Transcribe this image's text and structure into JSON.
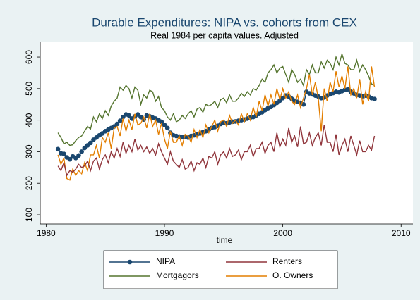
{
  "chart_data": {
    "type": "line",
    "title": "Durable Expenditures: NIPA vs. cohorts from CEX",
    "subtitle": "Real 1984 per capita values. Adjusted",
    "x_label": "time",
    "x": [
      1981,
      1981.25,
      1981.5,
      1981.75,
      1982,
      1982.25,
      1982.5,
      1982.75,
      1983,
      1983.25,
      1983.5,
      1983.75,
      1984,
      1984.25,
      1984.5,
      1984.75,
      1985,
      1985.25,
      1985.5,
      1985.75,
      1986,
      1986.25,
      1986.5,
      1986.75,
      1987,
      1987.25,
      1987.5,
      1987.75,
      1988,
      1988.25,
      1988.5,
      1988.75,
      1989,
      1989.25,
      1989.5,
      1989.75,
      1990,
      1990.25,
      1990.5,
      1990.75,
      1991,
      1991.25,
      1991.5,
      1991.75,
      1992,
      1992.25,
      1992.5,
      1992.75,
      1993,
      1993.25,
      1993.5,
      1993.75,
      1994,
      1994.25,
      1994.5,
      1994.75,
      1995,
      1995.25,
      1995.5,
      1995.75,
      1996,
      1996.25,
      1996.5,
      1996.75,
      1997,
      1997.25,
      1997.5,
      1997.75,
      1998,
      1998.25,
      1998.5,
      1998.75,
      1999,
      1999.25,
      1999.5,
      1999.75,
      2000,
      2000.25,
      2000.5,
      2000.75,
      2001,
      2001.25,
      2001.5,
      2001.75,
      2002,
      2002.25,
      2002.5,
      2002.75,
      2003,
      2003.25,
      2003.5,
      2003.75,
      2004,
      2004.25,
      2004.5,
      2004.75,
      2005,
      2005.25,
      2005.5,
      2005.75,
      2006,
      2006.25,
      2006.5,
      2006.75,
      2007,
      2007.25,
      2007.5,
      2007.75
    ],
    "series": [
      {
        "name": "NIPA",
        "color": "#1a476f",
        "markers": true,
        "values": [
          308,
          295,
          293,
          282,
          276,
          285,
          280,
          288,
          300,
          312,
          320,
          328,
          338,
          345,
          352,
          358,
          365,
          370,
          375,
          380,
          388,
          398,
          410,
          418,
          415,
          405,
          412,
          418,
          410,
          402,
          415,
          412,
          408,
          405,
          400,
          395,
          385,
          375,
          360,
          352,
          350,
          348,
          346,
          347,
          345,
          350,
          352,
          355,
          358,
          362,
          365,
          370,
          375,
          378,
          382,
          388,
          392,
          390,
          393,
          395,
          396,
          398,
          400,
          402,
          405,
          408,
          410,
          415,
          420,
          425,
          432,
          438,
          442,
          448,
          455,
          462,
          470,
          478,
          475,
          468,
          462,
          458,
          455,
          450,
          490,
          485,
          482,
          478,
          475,
          470,
          472,
          478,
          482,
          486,
          490,
          488,
          492,
          496,
          498,
          490,
          485,
          480,
          478,
          476,
          478,
          475,
          470,
          467
        ]
      },
      {
        "name": "Renters",
        "color": "#90353b",
        "markers": false,
        "values": [
          255,
          240,
          265,
          225,
          240,
          235,
          245,
          260,
          250,
          255,
          270,
          240,
          270,
          280,
          245,
          275,
          290,
          265,
          300,
          280,
          310,
          285,
          330,
          295,
          320,
          300,
          340,
          305,
          320,
          300,
          315,
          295,
          310,
          290,
          325,
          300,
          280,
          260,
          300,
          270,
          260,
          250,
          275,
          245,
          250,
          270,
          240,
          265,
          260,
          280,
          250,
          285,
          280,
          300,
          260,
          290,
          300,
          280,
          310,
          285,
          290,
          305,
          275,
          300,
          300,
          320,
          285,
          310,
          310,
          330,
          295,
          320,
          330,
          300,
          360,
          315,
          340,
          320,
          375,
          330,
          350,
          315,
          380,
          325,
          330,
          360,
          320,
          345,
          360,
          320,
          385,
          330,
          330,
          300,
          355,
          290,
          320,
          340,
          300,
          350,
          320,
          290,
          335,
          300,
          300,
          320,
          305,
          350
        ]
      },
      {
        "name": "Mortgagors",
        "color": "#55752f",
        "markers": false,
        "values": [
          360,
          345,
          325,
          330,
          320,
          322,
          335,
          345,
          350,
          365,
          380,
          372,
          410,
          395,
          420,
          405,
          430,
          415,
          445,
          460,
          470,
          505,
          495,
          510,
          500,
          470,
          505,
          495,
          450,
          480,
          470,
          495,
          490,
          460,
          475,
          440,
          430,
          410,
          400,
          420,
          395,
          400,
          415,
          405,
          420,
          430,
          410,
          435,
          440,
          425,
          450,
          445,
          450,
          460,
          440,
          465,
          470,
          455,
          480,
          460,
          460,
          470,
          485,
          475,
          490,
          480,
          500,
          495,
          510,
          530,
          520,
          550,
          560,
          575,
          550,
          565,
          570,
          545,
          520,
          560,
          545,
          520,
          530,
          510,
          560,
          545,
          575,
          550,
          550,
          585,
          565,
          590,
          580,
          560,
          600,
          575,
          610,
          580,
          575,
          560,
          560,
          590,
          555,
          575,
          560,
          540,
          515,
          510
        ]
      },
      {
        "name": "O. Owners",
        "color": "#e37e00",
        "markers": false,
        "values": [
          290,
          260,
          280,
          215,
          210,
          245,
          225,
          240,
          230,
          265,
          240,
          290,
          290,
          320,
          280,
          345,
          330,
          360,
          310,
          375,
          380,
          350,
          405,
          365,
          400,
          370,
          420,
          385,
          390,
          410,
          375,
          420,
          380,
          400,
          355,
          390,
          340,
          310,
          365,
          330,
          330,
          350,
          320,
          355,
          350,
          330,
          370,
          345,
          370,
          345,
          385,
          360,
          380,
          400,
          365,
          395,
          400,
          380,
          415,
          390,
          400,
          385,
          420,
          395,
          420,
          400,
          440,
          410,
          460,
          430,
          480,
          445,
          480,
          450,
          500,
          465,
          500,
          470,
          490,
          460,
          450,
          480,
          440,
          470,
          500,
          545,
          480,
          520,
          470,
          365,
          500,
          460,
          520,
          490,
          555,
          505,
          540,
          500,
          570,
          480,
          500,
          470,
          530,
          450,
          490,
          460,
          570,
          505
        ]
      }
    ],
    "xlim": [
      1979.5,
      2011
    ],
    "xticks": [
      1980,
      1990,
      2000,
      2010
    ],
    "ylim": [
      71,
      647
    ],
    "yticks": [
      100,
      200,
      300,
      400,
      500,
      600
    ]
  }
}
